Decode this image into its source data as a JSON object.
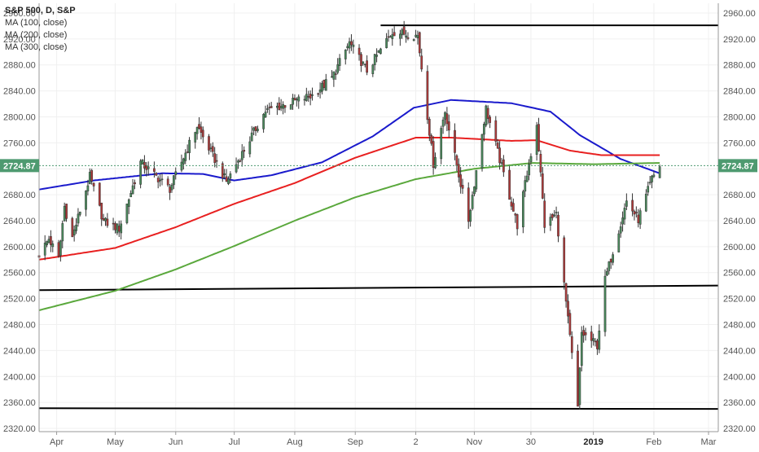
{
  "header": {
    "symbol_line": "S&P 500, D, S&P",
    "indicators": [
      "MA (100, close)",
      "MA (200, close)",
      "MA (300, close)"
    ]
  },
  "colors": {
    "background": "#ffffff",
    "up_candle": "#4a8a5c",
    "down_candle": "#b03a3a",
    "ma100": "#1a1acc",
    "ma200": "#e82020",
    "ma300": "#5aa83c",
    "trendline": "#000000",
    "price_tag": "#4e9a70",
    "grid": "#f0f0f0",
    "axis_text": "#555555"
  },
  "chart_data": {
    "type": "candlestick",
    "title": "S&P 500, D, S&P",
    "xlabel": "",
    "ylabel": "",
    "x_range": [
      "2018-03-23",
      "2019-03-06"
    ],
    "ylim": [
      2315,
      2975
    ],
    "grid": true,
    "legend_position": "top-left",
    "x_ticks": [
      {
        "date": "2018-04-01",
        "label": "Apr"
      },
      {
        "date": "2018-05-01",
        "label": "May"
      },
      {
        "date": "2018-06-01",
        "label": "Jun"
      },
      {
        "date": "2018-07-01",
        "label": "Jul"
      },
      {
        "date": "2018-08-01",
        "label": "Aug"
      },
      {
        "date": "2018-09-01",
        "label": "Sep"
      },
      {
        "date": "2018-10-02",
        "label": "2"
      },
      {
        "date": "2018-11-01",
        "label": "Nov"
      },
      {
        "date": "2018-11-30",
        "label": "30"
      },
      {
        "date": "2019-01-01",
        "label": "2019"
      },
      {
        "date": "2019-02-01",
        "label": "Feb"
      },
      {
        "date": "2019-03-01",
        "label": "Mar"
      }
    ],
    "y_ticks": [
      "2320.00",
      "2360.00",
      "2400.00",
      "2440.00",
      "2480.00",
      "2520.00",
      "2560.00",
      "2600.00",
      "2640.00",
      "2680.00",
      "2720.00",
      "2760.00",
      "2800.00",
      "2840.00",
      "2880.00",
      "2920.00",
      "2960.00"
    ],
    "last_price": "2724.87",
    "price_path": [
      [
        "2018-03-23",
        2588
      ],
      [
        "2018-03-28",
        2612
      ],
      [
        "2018-04-02",
        2582
      ],
      [
        "2018-04-05",
        2662
      ],
      [
        "2018-04-09",
        2614
      ],
      [
        "2018-04-18",
        2708
      ],
      [
        "2018-04-25",
        2639
      ],
      [
        "2018-05-03",
        2628
      ],
      [
        "2018-05-14",
        2730
      ],
      [
        "2018-05-29",
        2689
      ],
      [
        "2018-06-12",
        2786
      ],
      [
        "2018-06-27",
        2700
      ],
      [
        "2018-07-17",
        2809
      ],
      [
        "2018-08-10",
        2833
      ],
      [
        "2018-08-20",
        2860
      ],
      [
        "2018-08-29",
        2914
      ],
      [
        "2018-09-07",
        2871
      ],
      [
        "2018-09-20",
        2931
      ],
      [
        "2018-10-03",
        2925
      ],
      [
        "2018-10-11",
        2728
      ],
      [
        "2018-10-17",
        2809
      ],
      [
        "2018-10-29",
        2641
      ],
      [
        "2018-11-07",
        2813
      ],
      [
        "2018-11-23",
        2633
      ],
      [
        "2018-12-03",
        2790
      ],
      [
        "2018-12-07",
        2633
      ],
      [
        "2018-12-13",
        2650
      ],
      [
        "2018-12-24",
        2351
      ],
      [
        "2018-12-26",
        2467
      ],
      [
        "2019-01-03",
        2448
      ],
      [
        "2019-01-07",
        2549
      ],
      [
        "2019-01-18",
        2670
      ],
      [
        "2019-01-24",
        2642
      ],
      [
        "2019-01-31",
        2704
      ],
      [
        "2019-02-04",
        2724.87
      ]
    ],
    "series": [
      {
        "name": "MA (100, close)",
        "color": "#1a1acc",
        "points": [
          [
            "2018-03-23",
            2688
          ],
          [
            "2018-04-20",
            2702
          ],
          [
            "2018-05-25",
            2713
          ],
          [
            "2018-06-15",
            2712
          ],
          [
            "2018-07-01",
            2702
          ],
          [
            "2018-07-20",
            2710
          ],
          [
            "2018-08-15",
            2730
          ],
          [
            "2018-09-10",
            2770
          ],
          [
            "2018-10-01",
            2814
          ],
          [
            "2018-10-20",
            2826
          ],
          [
            "2018-11-20",
            2821
          ],
          [
            "2018-12-10",
            2808
          ],
          [
            "2018-12-25",
            2772
          ],
          [
            "2019-01-15",
            2735
          ],
          [
            "2019-02-04",
            2713
          ]
        ]
      },
      {
        "name": "MA (200, close)",
        "color": "#e82020",
        "points": [
          [
            "2018-03-23",
            2580
          ],
          [
            "2018-05-01",
            2598
          ],
          [
            "2018-06-01",
            2630
          ],
          [
            "2018-07-01",
            2666
          ],
          [
            "2018-08-01",
            2698
          ],
          [
            "2018-09-01",
            2737
          ],
          [
            "2018-10-02",
            2768
          ],
          [
            "2018-10-20",
            2768
          ],
          [
            "2018-11-20",
            2763
          ],
          [
            "2018-12-03",
            2764
          ],
          [
            "2018-12-20",
            2748
          ],
          [
            "2019-01-05",
            2741
          ],
          [
            "2019-02-04",
            2741
          ]
        ]
      },
      {
        "name": "MA (300, close)",
        "color": "#5aa83c",
        "points": [
          [
            "2018-03-23",
            2502
          ],
          [
            "2018-05-01",
            2532
          ],
          [
            "2018-06-01",
            2565
          ],
          [
            "2018-07-01",
            2601
          ],
          [
            "2018-08-01",
            2640
          ],
          [
            "2018-09-01",
            2676
          ],
          [
            "2018-10-02",
            2704
          ],
          [
            "2018-11-01",
            2720
          ],
          [
            "2018-12-01",
            2729
          ],
          [
            "2019-01-01",
            2727
          ],
          [
            "2019-02-04",
            2729
          ]
        ]
      }
    ],
    "trendlines": [
      {
        "from": [
          "2018-09-14",
          2941
        ],
        "to": [
          "2019-03-06",
          2941
        ]
      },
      {
        "from": [
          "2018-03-23",
          2533
        ],
        "to": [
          "2019-03-06",
          2540
        ]
      },
      {
        "from": [
          "2018-03-23",
          2351
        ],
        "to": [
          "2019-03-06",
          2350
        ]
      }
    ]
  }
}
